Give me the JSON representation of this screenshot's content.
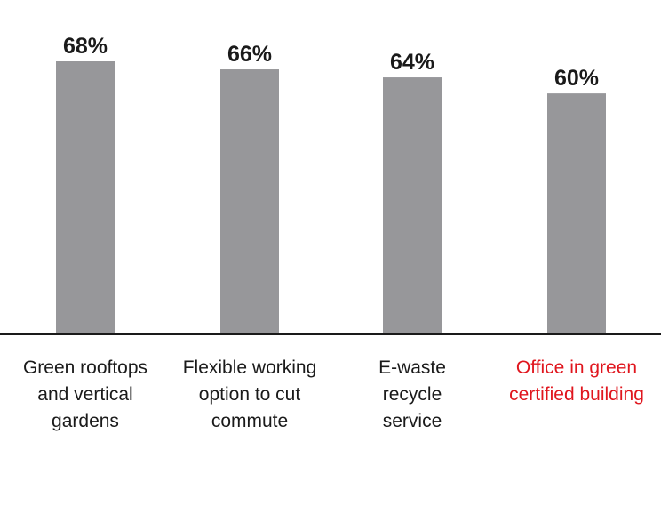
{
  "chart_data": {
    "type": "bar",
    "categories": [
      [
        "Green rooftops",
        "and vertical",
        "gardens"
      ],
      [
        "Flexible working",
        "option to cut",
        "commute"
      ],
      [
        "E-waste",
        "recycle",
        "service"
      ],
      [
        "Office in green",
        "certified building"
      ]
    ],
    "values": [
      68,
      66,
      64,
      60
    ],
    "value_labels": [
      "68%",
      "66%",
      "64%",
      "60%"
    ],
    "value_unit": "%",
    "ylim": [
      0,
      68
    ],
    "grid": false,
    "legend": "none",
    "title": "",
    "xlabel": "",
    "ylabel": "",
    "highlight_index": 3,
    "colors": {
      "bar": "#97979a",
      "axis": "#1a1a1a",
      "label": "#1a1a1a",
      "highlight_label": "#e0161e",
      "value_label": "#1a1a1a"
    }
  }
}
